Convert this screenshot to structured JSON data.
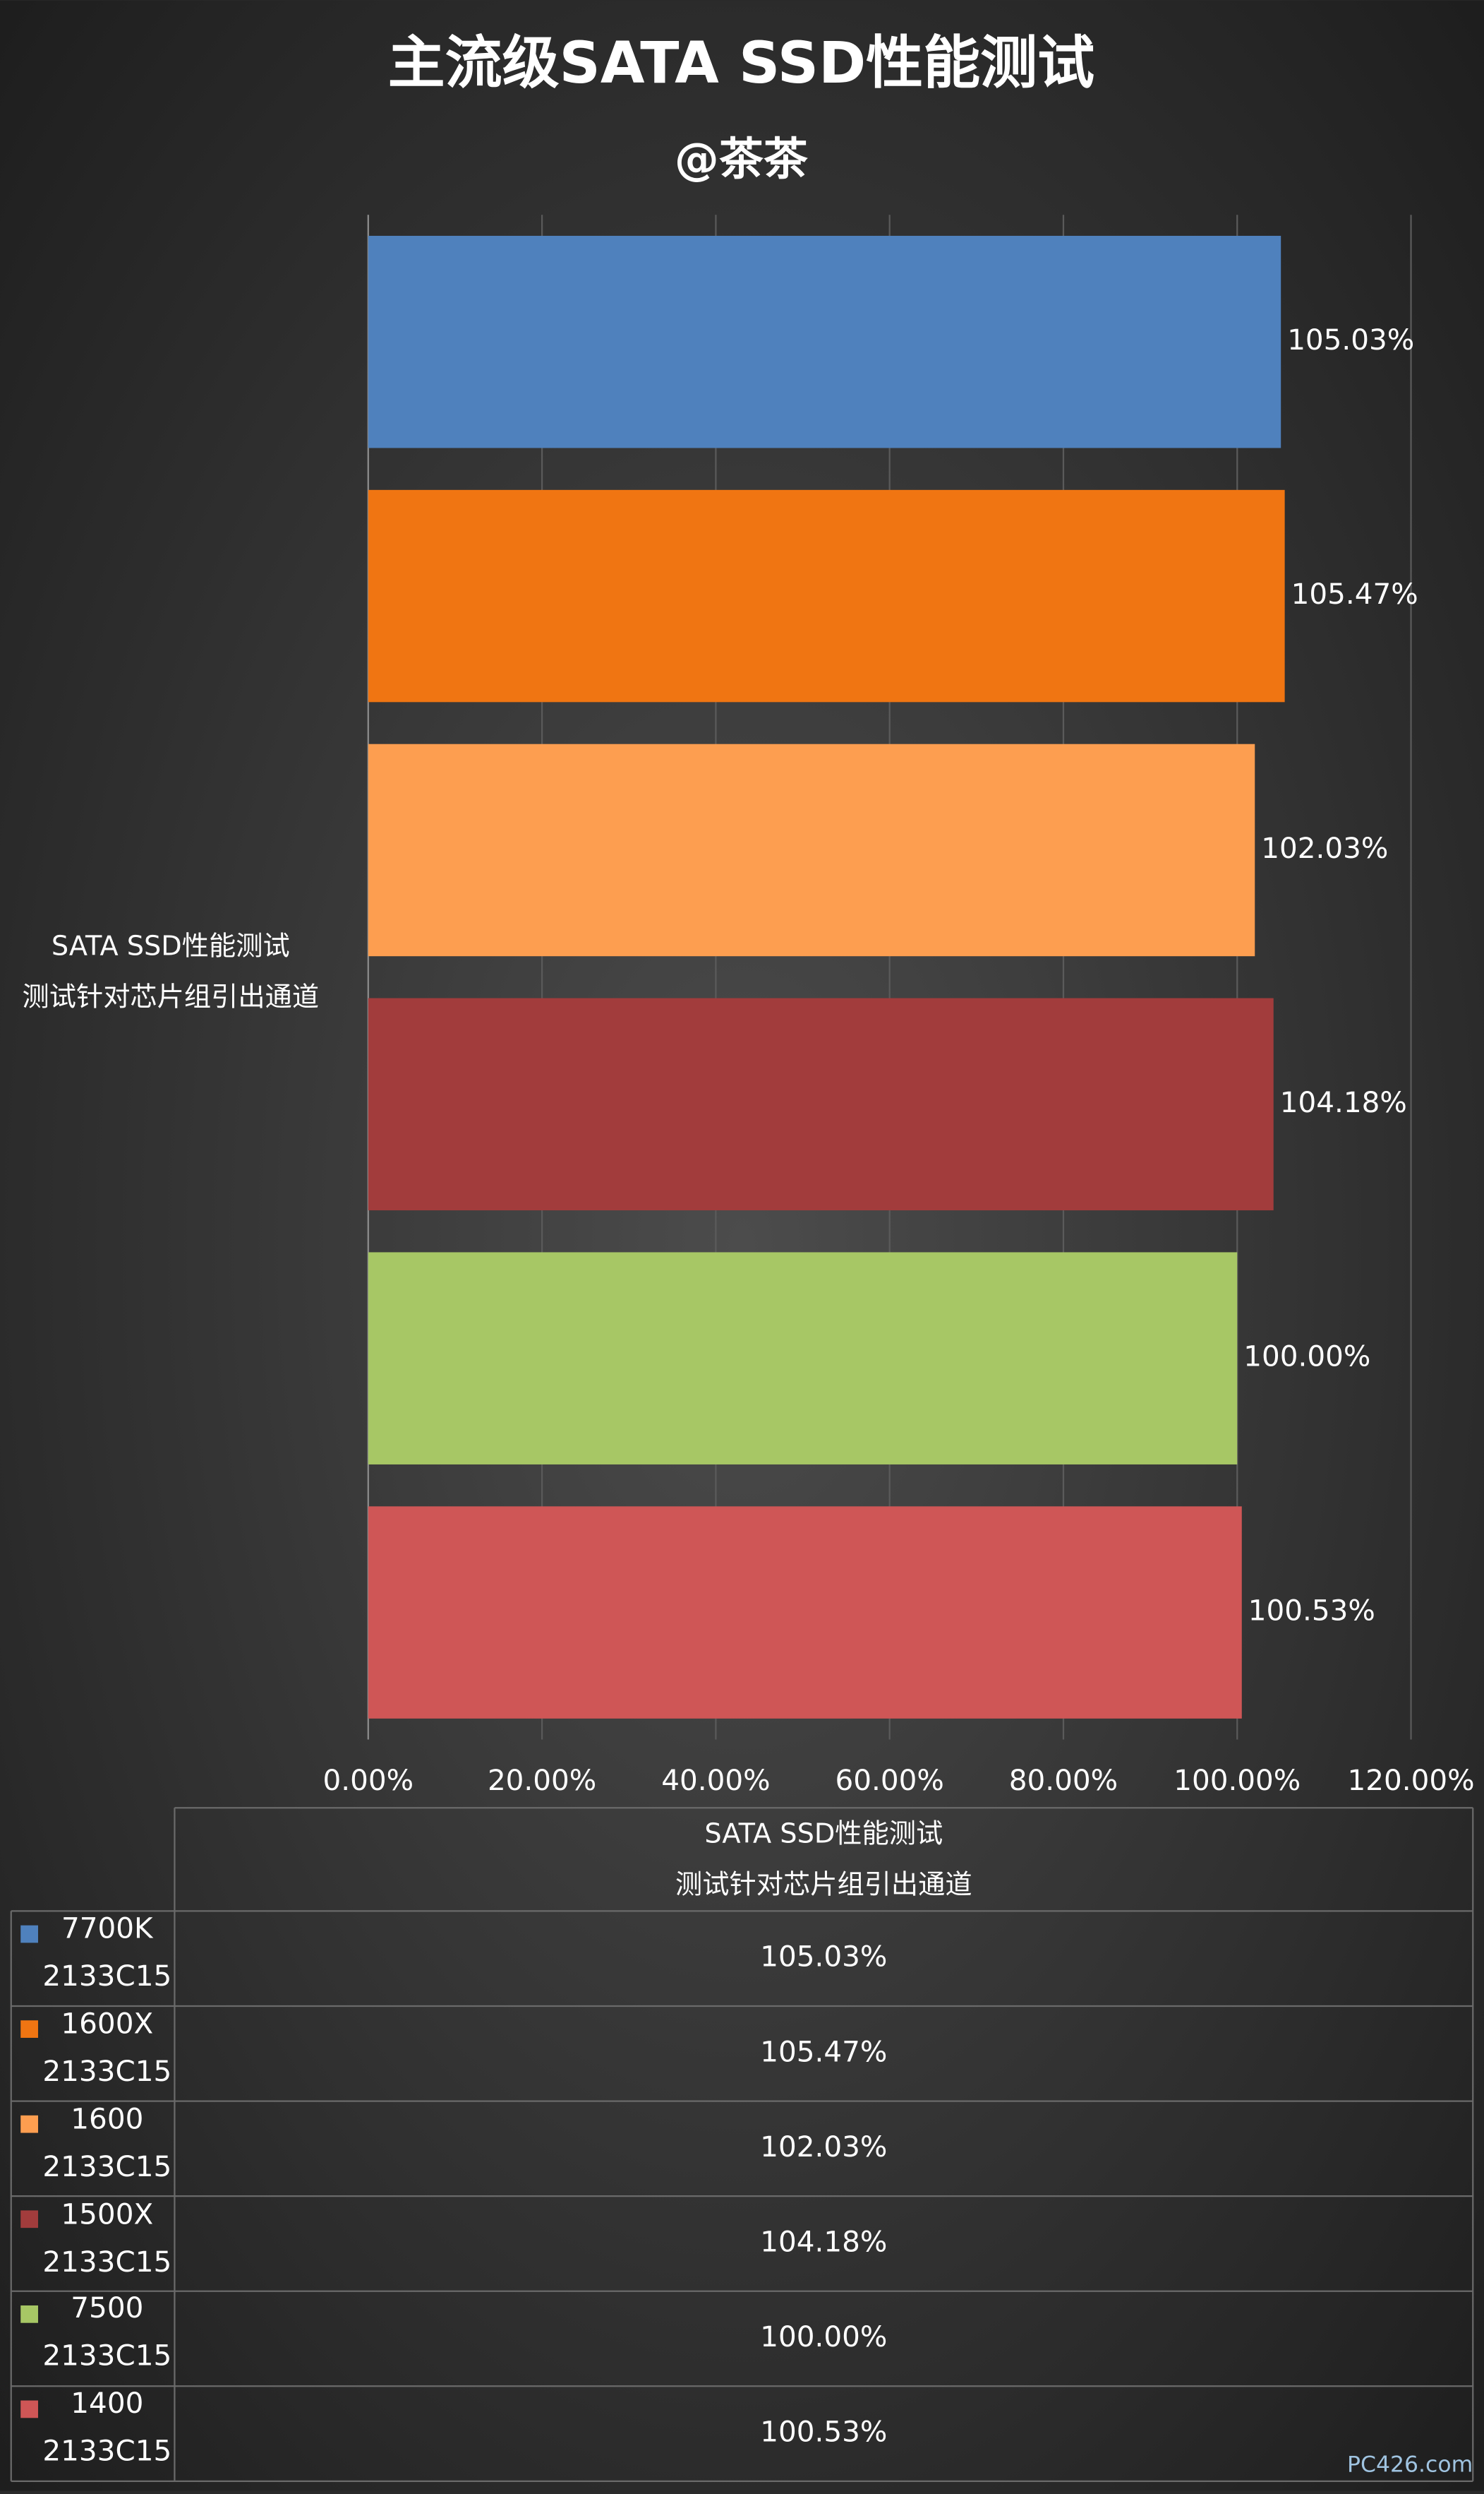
{
  "chart_data": {
    "type": "hbar",
    "title": "主流级SATA SSD性能测试",
    "subtitle": "@茶茶",
    "watermark": "PC426.com",
    "categories": [
      "SATA SSD性能测试\n测试针对芯片组引出通道"
    ],
    "series": [
      {
        "name": "7700K\n2133C15",
        "color": "#4f81bd",
        "values": [
          105.03
        ],
        "value_labels": [
          "105.03%"
        ]
      },
      {
        "name": "1600X\n2133C15",
        "color": "#f07512",
        "values": [
          105.47
        ],
        "value_labels": [
          "105.47%"
        ]
      },
      {
        "name": "1600\n2133C15",
        "color": "#fd9e50",
        "values": [
          102.03
        ],
        "value_labels": [
          "102.03%"
        ]
      },
      {
        "name": "1500X\n2133C15",
        "color": "#a23c3c",
        "values": [
          104.18
        ],
        "value_labels": [
          "104.18%"
        ]
      },
      {
        "name": "7500\n2133C15",
        "color": "#a7c765",
        "values": [
          100
        ],
        "value_labels": [
          "100.00%"
        ]
      },
      {
        "name": "1400\n2133C15",
        "color": "#cf5656",
        "values": [
          100.53
        ],
        "value_labels": [
          "100.53%"
        ]
      }
    ],
    "xlim": [
      0,
      120
    ],
    "xticks": [
      {
        "value": 0,
        "label": "0.00%"
      },
      {
        "value": 20,
        "label": "20.00%"
      },
      {
        "value": 40,
        "label": "40.00%"
      },
      {
        "value": 60,
        "label": "60.00%"
      },
      {
        "value": 80,
        "label": "80.00%"
      },
      {
        "value": 100,
        "label": "100.00%"
      },
      {
        "value": 120,
        "label": "120.00%"
      }
    ],
    "grid": true,
    "data_table": true
  }
}
